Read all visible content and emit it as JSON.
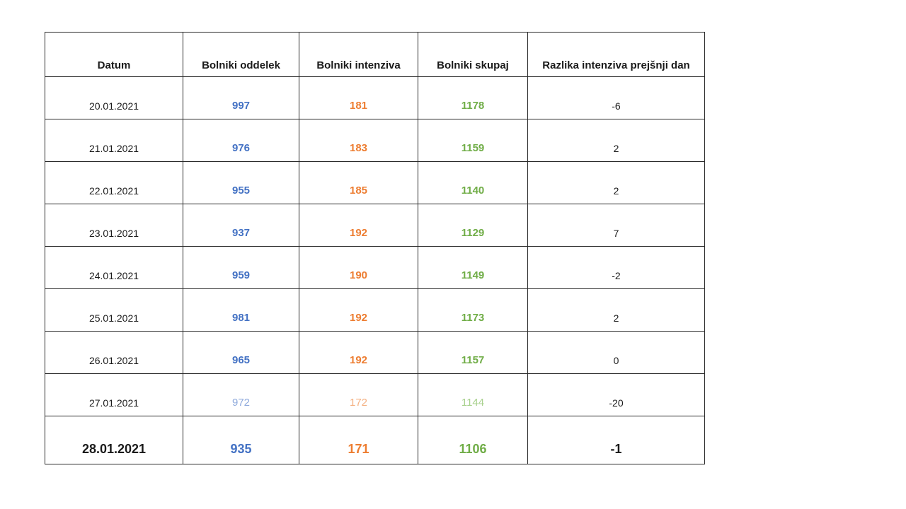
{
  "table": {
    "headers": [
      "Datum",
      "Bolniki oddelek",
      "Bolniki intenziva",
      "Bolniki skupaj",
      "Razlika intenziva prejšnji dan"
    ],
    "rows": [
      {
        "datum": "20.01.2021",
        "oddelek": "997",
        "intenziva": "181",
        "skupaj": "1178",
        "razlika": "-6",
        "variant": "normal"
      },
      {
        "datum": "21.01.2021",
        "oddelek": "976",
        "intenziva": "183",
        "skupaj": "1159",
        "razlika": "2",
        "variant": "normal"
      },
      {
        "datum": "22.01.2021",
        "oddelek": "955",
        "intenziva": "185",
        "skupaj": "1140",
        "razlika": "2",
        "variant": "normal"
      },
      {
        "datum": "23.01.2021",
        "oddelek": "937",
        "intenziva": "192",
        "skupaj": "1129",
        "razlika": "7",
        "variant": "normal"
      },
      {
        "datum": "24.01.2021",
        "oddelek": "959",
        "intenziva": "190",
        "skupaj": "1149",
        "razlika": "-2",
        "variant": "normal"
      },
      {
        "datum": "25.01.2021",
        "oddelek": "981",
        "intenziva": "192",
        "skupaj": "1173",
        "razlika": "2",
        "variant": "normal"
      },
      {
        "datum": "26.01.2021",
        "oddelek": "965",
        "intenziva": "192",
        "skupaj": "1157",
        "razlika": "0",
        "variant": "normal"
      },
      {
        "datum": "27.01.2021",
        "oddelek": "972",
        "intenziva": "172",
        "skupaj": "1144",
        "razlika": "-20",
        "variant": "light"
      },
      {
        "datum": "28.01.2021",
        "oddelek": "935",
        "intenziva": "171",
        "skupaj": "1106",
        "razlika": "-1",
        "variant": "emphasis"
      }
    ],
    "colors": {
      "oddelek": "#4472C4",
      "intenziva": "#ED7D31",
      "skupaj": "#70AD47",
      "oddelek_light": "#8FAADC",
      "intenziva_light": "#F4B183",
      "skupaj_light": "#A9D18E",
      "text": "#1a1a1a"
    }
  },
  "chart_data": {
    "type": "table",
    "columns": [
      "Datum",
      "Bolniki oddelek",
      "Bolniki intenziva",
      "Bolniki skupaj",
      "Razlika intenziva prejšnji dan"
    ],
    "rows": [
      [
        "20.01.2021",
        997,
        181,
        1178,
        -6
      ],
      [
        "21.01.2021",
        976,
        183,
        1159,
        2
      ],
      [
        "22.01.2021",
        955,
        185,
        1140,
        2
      ],
      [
        "23.01.2021",
        937,
        192,
        1129,
        7
      ],
      [
        "24.01.2021",
        959,
        190,
        1149,
        -2
      ],
      [
        "25.01.2021",
        981,
        192,
        1173,
        2
      ],
      [
        "26.01.2021",
        965,
        192,
        1157,
        0
      ],
      [
        "27.01.2021",
        972,
        172,
        1144,
        -20
      ],
      [
        "28.01.2021",
        935,
        171,
        1106,
        -1
      ]
    ],
    "notes": {
      "series_colors": {
        "Bolniki oddelek": "#4472C4",
        "Bolniki intenziva": "#ED7D31",
        "Bolniki skupaj": "#70AD47"
      },
      "row_27_style": "light/faded values",
      "row_28_style": "bold emphasized values"
    }
  }
}
